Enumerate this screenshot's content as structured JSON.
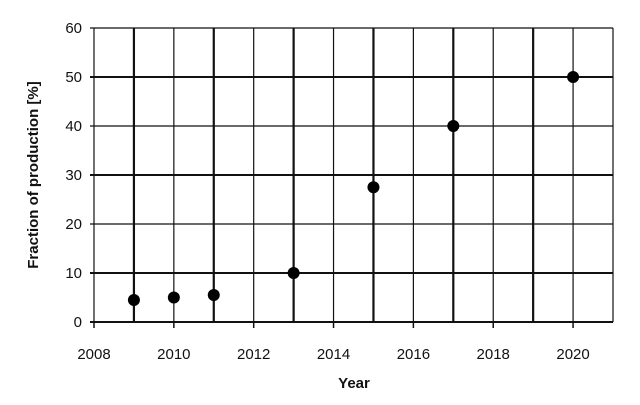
{
  "chart_data": {
    "type": "scatter",
    "title": "",
    "xlabel": "Year",
    "ylabel": "Fraction of production [%]",
    "xlim": [
      2008,
      2021
    ],
    "ylim": [
      0,
      60
    ],
    "xticks": [
      "2008",
      "2010",
      "2012",
      "2014",
      "2016",
      "2018",
      "2020"
    ],
    "yticks": [
      "0",
      "10",
      "20",
      "30",
      "40",
      "50",
      "60"
    ],
    "grid": true,
    "x": [
      2009,
      2010,
      2011,
      2013,
      2015,
      2017,
      2020
    ],
    "y": [
      4.5,
      5,
      5.5,
      10,
      27.5,
      40,
      50
    ],
    "marker_color": "#000000"
  }
}
